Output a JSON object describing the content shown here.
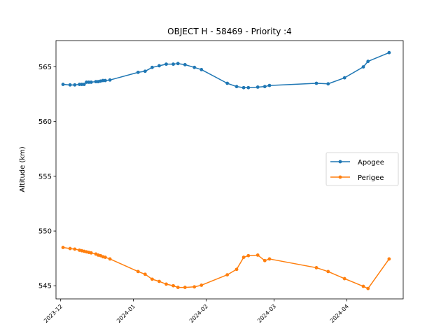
{
  "chart_data": {
    "type": "line",
    "title": "OBJECT H - 58469 - Priority :4",
    "xlabel": "",
    "ylabel": "Altitude (km)",
    "x_is_date": true,
    "xlim": [
      "2023-11-29",
      "2024-04-25"
    ],
    "ylim": [
      543.8,
      567.4
    ],
    "yticks": [
      545,
      550,
      555,
      560,
      565
    ],
    "xticks": [
      "2023-12-01",
      "2024-01-01",
      "2024-02-01",
      "2024-03-01",
      "2024-04-01"
    ],
    "xtick_labels": [
      "2023-12",
      "2024-01",
      "2024-02",
      "2024-03",
      "2024-04"
    ],
    "grid": false,
    "legend_position": "center-right",
    "series": [
      {
        "name": "Apogee",
        "color": "#1f77b4",
        "points": [
          [
            "2023-12-02",
            563.4
          ],
          [
            "2023-12-05",
            563.35
          ],
          [
            "2023-12-07",
            563.35
          ],
          [
            "2023-12-09",
            563.4
          ],
          [
            "2023-12-10",
            563.4
          ],
          [
            "2023-12-11",
            563.4
          ],
          [
            "2023-12-12",
            563.6
          ],
          [
            "2023-12-13",
            563.6
          ],
          [
            "2023-12-14",
            563.6
          ],
          [
            "2023-12-16",
            563.65
          ],
          [
            "2023-12-17",
            563.65
          ],
          [
            "2023-12-18",
            563.7
          ],
          [
            "2023-12-19",
            563.75
          ],
          [
            "2023-12-20",
            563.75
          ],
          [
            "2023-12-22",
            563.8
          ],
          [
            "2024-01-03",
            564.5
          ],
          [
            "2024-01-06",
            564.6
          ],
          [
            "2024-01-09",
            564.95
          ],
          [
            "2024-01-12",
            565.1
          ],
          [
            "2024-01-15",
            565.25
          ],
          [
            "2024-01-18",
            565.25
          ],
          [
            "2024-01-20",
            565.3
          ],
          [
            "2024-01-23",
            565.2
          ],
          [
            "2024-01-27",
            564.95
          ],
          [
            "2024-01-30",
            564.75
          ],
          [
            "2024-02-10",
            563.5
          ],
          [
            "2024-02-14",
            563.2
          ],
          [
            "2024-02-17",
            563.1
          ],
          [
            "2024-02-19",
            563.1
          ],
          [
            "2024-02-23",
            563.15
          ],
          [
            "2024-02-26",
            563.2
          ],
          [
            "2024-02-28",
            563.3
          ],
          [
            "2024-03-19",
            563.5
          ],
          [
            "2024-03-24",
            563.45
          ],
          [
            "2024-03-31",
            564.0
          ],
          [
            "2024-04-08",
            565.0
          ],
          [
            "2024-04-10",
            565.5
          ],
          [
            "2024-04-19",
            566.3
          ]
        ]
      },
      {
        "name": "Perigee",
        "color": "#ff7f0e",
        "points": [
          [
            "2023-12-02",
            548.5
          ],
          [
            "2023-12-05",
            548.4
          ],
          [
            "2023-12-07",
            548.35
          ],
          [
            "2023-12-09",
            548.25
          ],
          [
            "2023-12-10",
            548.2
          ],
          [
            "2023-12-11",
            548.15
          ],
          [
            "2023-12-12",
            548.1
          ],
          [
            "2023-12-13",
            548.05
          ],
          [
            "2023-12-14",
            548.0
          ],
          [
            "2023-12-16",
            547.9
          ],
          [
            "2023-12-17",
            547.8
          ],
          [
            "2023-12-18",
            547.75
          ],
          [
            "2023-12-19",
            547.65
          ],
          [
            "2023-12-20",
            547.6
          ],
          [
            "2023-12-22",
            547.45
          ],
          [
            "2024-01-03",
            546.3
          ],
          [
            "2024-01-06",
            546.05
          ],
          [
            "2024-01-09",
            545.6
          ],
          [
            "2024-01-12",
            545.4
          ],
          [
            "2024-01-15",
            545.15
          ],
          [
            "2024-01-18",
            545.0
          ],
          [
            "2024-01-20",
            544.85
          ],
          [
            "2024-01-23",
            544.85
          ],
          [
            "2024-01-27",
            544.9
          ],
          [
            "2024-01-30",
            545.05
          ],
          [
            "2024-02-10",
            546.0
          ],
          [
            "2024-02-14",
            546.5
          ],
          [
            "2024-02-17",
            547.6
          ],
          [
            "2024-02-19",
            547.75
          ],
          [
            "2024-02-23",
            547.8
          ],
          [
            "2024-02-26",
            547.3
          ],
          [
            "2024-02-28",
            547.45
          ],
          [
            "2024-03-19",
            546.65
          ],
          [
            "2024-03-24",
            546.3
          ],
          [
            "2024-03-31",
            545.65
          ],
          [
            "2024-04-08",
            544.95
          ],
          [
            "2024-04-10",
            544.75
          ],
          [
            "2024-04-19",
            547.45
          ]
        ]
      }
    ]
  }
}
